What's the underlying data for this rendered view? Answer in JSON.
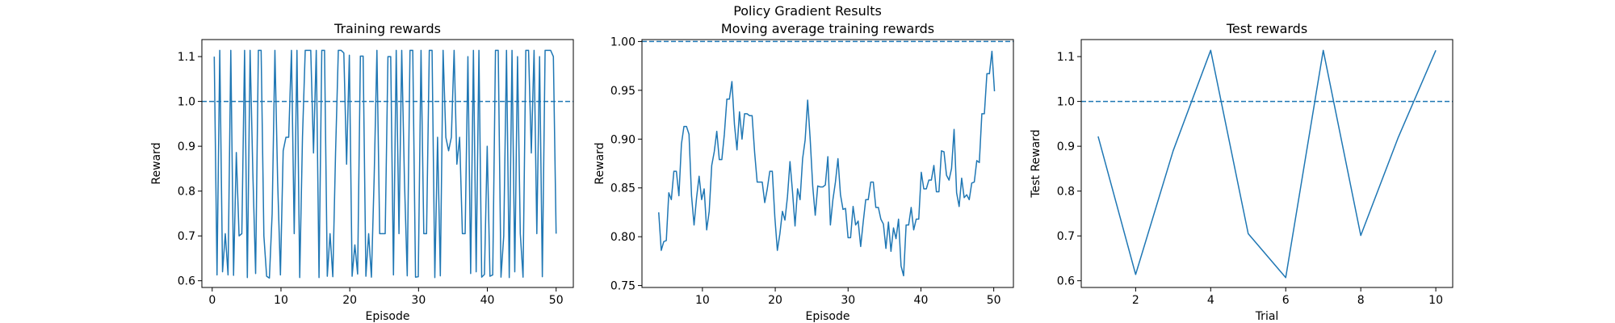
{
  "figure": {
    "suptitle": "Policy Gradient Results"
  },
  "colors": {
    "line": "#1f77b4",
    "axes": "#000000",
    "background": "#ffffff"
  },
  "chart_data": [
    {
      "type": "line",
      "title": "Training rewards",
      "xlabel": "Episode",
      "ylabel": "Reward",
      "xlim": [
        -1.5,
        52.5
      ],
      "ylim": [
        0.585,
        1.138
      ],
      "xticks": [
        0,
        10,
        20,
        30,
        40,
        50
      ],
      "yticks": [
        0.6,
        0.7,
        0.8,
        0.9,
        1.0,
        1.1
      ],
      "ytick_labels": [
        "0.6",
        "0.7",
        "0.8",
        "0.9",
        "1.0",
        "1.1"
      ],
      "hline": {
        "y": 1.0,
        "style": "dashed"
      },
      "series": [
        {
          "values": [
            1.1,
            0.613,
            1.114,
            0.62,
            0.705,
            0.613,
            1.114,
            0.612,
            0.886,
            0.7,
            0.705,
            1.114,
            0.607,
            1.114,
            0.84,
            0.616,
            1.114,
            1.114,
            0.7,
            0.61,
            0.606,
            0.75,
            1.114,
            0.82,
            0.613,
            0.89,
            0.92,
            0.92,
            1.114,
            0.705,
            1.114,
            0.607,
            0.92,
            1.114,
            1.114,
            1.114,
            0.885,
            1.114,
            0.607,
            1.114,
            1.114,
            0.61,
            0.705,
            0.609,
            0.886,
            1.114,
            1.114,
            1.108,
            0.86,
            1.103,
            0.61,
            0.68,
            0.615,
            1.101,
            1.101,
            0.61,
            0.705,
            0.608,
            0.83,
            1.114,
            0.705,
            0.705,
            0.705,
            1.1,
            1.1,
            0.613,
            1.114,
            0.705,
            1.114,
            0.82,
            0.611,
            1.114,
            1.114,
            0.608,
            0.609,
            1.114,
            0.705,
            0.705,
            1.114,
            1.114,
            0.607,
            0.92,
            0.611,
            1.114,
            0.92,
            0.89,
            0.92,
            1.114,
            0.86,
            0.92,
            0.705,
            0.705,
            1.1,
            0.616,
            1.114,
            0.62,
            1.114,
            0.608,
            0.614,
            0.9,
            0.61,
            0.613,
            1.114,
            1.114,
            0.608,
            0.7,
            1.114,
            0.607,
            1.114,
            0.62,
            1.1,
            0.705,
            0.608,
            1.114,
            1.114,
            0.885,
            1.114,
            0.705,
            1.1,
            0.609,
            1.114,
            1.114,
            1.114,
            1.1,
            0.705
          ]
        }
      ]
    },
    {
      "type": "line",
      "title": "Moving average training rewards",
      "xlabel": "Episode",
      "ylabel": "Reward",
      "xlim": [
        1.7,
        52.7
      ],
      "ylim": [
        0.748,
        1.002
      ],
      "xticks": [
        10,
        20,
        30,
        40,
        50
      ],
      "yticks": [
        0.75,
        0.8,
        0.85,
        0.9,
        0.95,
        1.0
      ],
      "ytick_labels": [
        "0.75",
        "0.80",
        "0.85",
        "0.90",
        "0.95",
        "1.00"
      ],
      "hline": {
        "y": 1.0,
        "style": "dashed"
      },
      "series": [
        {
          "values": [
            0.825,
            0.786,
            0.795,
            0.796,
            0.845,
            0.838,
            0.867,
            0.867,
            0.842,
            0.895,
            0.913,
            0.913,
            0.905,
            0.842,
            0.812,
            0.84,
            0.862,
            0.838,
            0.849,
            0.807,
            0.826,
            0.873,
            0.887,
            0.908,
            0.879,
            0.879,
            0.905,
            0.941,
            0.941,
            0.959,
            0.915,
            0.889,
            0.928,
            0.9,
            0.926,
            0.926,
            0.924,
            0.924,
            0.886,
            0.856,
            0.856,
            0.856,
            0.835,
            0.849,
            0.867,
            0.867,
            0.82,
            0.786,
            0.803,
            0.826,
            0.817,
            0.841,
            0.877,
            0.846,
            0.811,
            0.849,
            0.838,
            0.88,
            0.899,
            0.94,
            0.9,
            0.852,
            0.822,
            0.852,
            0.851,
            0.851,
            0.853,
            0.882,
            0.812,
            0.838,
            0.856,
            0.88,
            0.843,
            0.828,
            0.829,
            0.799,
            0.799,
            0.831,
            0.812,
            0.816,
            0.79,
            0.815,
            0.838,
            0.838,
            0.856,
            0.856,
            0.83,
            0.83,
            0.818,
            0.813,
            0.788,
            0.815,
            0.785,
            0.809,
            0.798,
            0.818,
            0.77,
            0.76,
            0.812,
            0.812,
            0.83,
            0.807,
            0.818,
            0.818,
            0.866,
            0.849,
            0.849,
            0.858,
            0.858,
            0.873,
            0.846,
            0.846,
            0.888,
            0.887,
            0.863,
            0.858,
            0.87,
            0.91,
            0.845,
            0.831,
            0.86,
            0.84,
            0.843,
            0.838,
            0.855,
            0.856,
            0.878,
            0.876,
            0.926,
            0.926,
            0.967,
            0.967,
            0.99,
            0.949
          ]
        }
      ]
    },
    {
      "type": "line",
      "title": "Test rewards",
      "xlabel": "Trial",
      "ylabel": "Test Reward",
      "xlim": [
        0.55,
        10.45
      ],
      "ylim": [
        0.585,
        1.138
      ],
      "xticks": [
        2,
        4,
        6,
        8,
        10
      ],
      "yticks": [
        0.6,
        0.7,
        0.8,
        0.9,
        1.0,
        1.1
      ],
      "ytick_labels": [
        "0.6",
        "0.7",
        "0.8",
        "0.9",
        "1.0",
        "1.1"
      ],
      "hline": {
        "y": 1.0,
        "style": "dashed"
      },
      "series": [
        {
          "x": [
            1,
            2,
            3,
            4,
            5,
            6,
            7,
            8,
            9,
            10
          ],
          "values": [
            0.922,
            0.614,
            0.89,
            1.114,
            0.705,
            0.607,
            1.114,
            0.701,
            0.92,
            1.114
          ]
        }
      ]
    }
  ]
}
